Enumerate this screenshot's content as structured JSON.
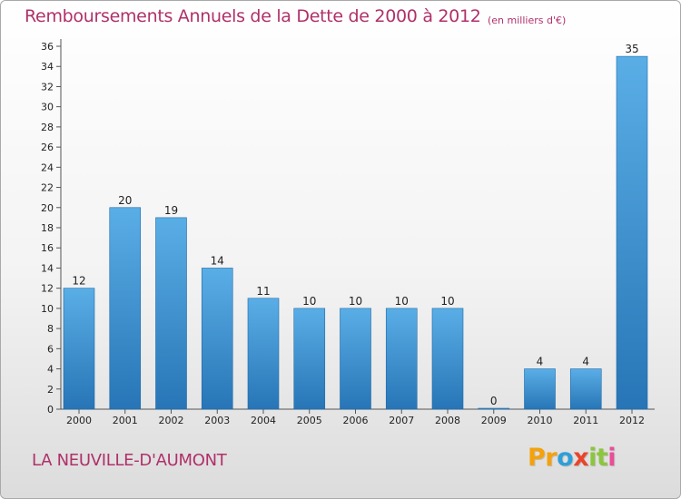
{
  "title": "Remboursements Annuels de la Dette de 2000 à 2012",
  "subtitle": "(en milliers d'€)",
  "commune": "LA NEUVILLE-D'AUMONT",
  "logo": {
    "letters": [
      "P",
      "r",
      "o",
      "x",
      "i",
      "t",
      "i"
    ],
    "colors": [
      "#f4a20c",
      "#f4a20c",
      "#2e9fd8",
      "#e8452c",
      "#8cc63e",
      "#8cc63e",
      "#e84e9a"
    ]
  },
  "colors": {
    "bar_light": "#5aaee6",
    "bar_dark": "#2775b6",
    "title": "#b0306a"
  },
  "chart_data": {
    "type": "bar",
    "title": "Remboursements Annuels de la Dette de 2000 à 2012",
    "xlabel": "",
    "ylabel": "",
    "categories": [
      "2000",
      "2001",
      "2002",
      "2003",
      "2004",
      "2005",
      "2006",
      "2007",
      "2008",
      "2009",
      "2010",
      "2011",
      "2012"
    ],
    "values": [
      12,
      20,
      19,
      14,
      11,
      10,
      10,
      10,
      10,
      0,
      4,
      4,
      35
    ],
    "ylim": [
      0,
      36
    ],
    "yticks": [
      0,
      2,
      4,
      6,
      8,
      10,
      12,
      14,
      16,
      18,
      20,
      22,
      24,
      26,
      28,
      30,
      32,
      34,
      36
    ],
    "grid": false
  }
}
